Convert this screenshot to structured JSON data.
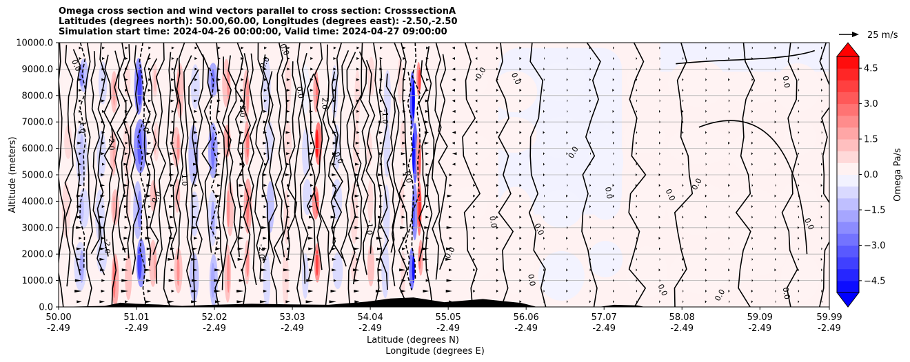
{
  "chart_data": {
    "type": "heatmap",
    "title_lines": [
      "Omega cross section and wind vectors parallel to cross section: CrosssectionA",
      "Latitudes (degrees north): 50.00,60.00, Longitudes (degrees east): -2.50,-2.50",
      "Simulation start time: 2024-04-26 00:00:00, Valid time: 2024-04-27 09:00:00"
    ],
    "ylabel": "Altitude (meters)",
    "xlabel_lines": [
      "Latitude (degrees N)",
      "Longitude (degrees E)"
    ],
    "ylim": [
      0,
      10000
    ],
    "xlim": [
      50.0,
      59.99
    ],
    "y_ticks": [
      {
        "value": 0,
        "label": "0.0"
      },
      {
        "value": 1000,
        "label": "1000.0"
      },
      {
        "value": 2000,
        "label": "2000.0"
      },
      {
        "value": 3000,
        "label": "3000.0"
      },
      {
        "value": 4000,
        "label": "4000.0"
      },
      {
        "value": 5000,
        "label": "5000.0"
      },
      {
        "value": 6000,
        "label": "6000.0"
      },
      {
        "value": 7000,
        "label": "7000.0"
      },
      {
        "value": 8000,
        "label": "8000.0"
      },
      {
        "value": 9000,
        "label": "9000.0"
      },
      {
        "value": 10000,
        "label": "10000.0"
      }
    ],
    "x_ticks": [
      {
        "value": 50.0,
        "lat": "50.00",
        "lon": "-2.49"
      },
      {
        "value": 51.01,
        "lat": "51.01",
        "lon": "-2.49"
      },
      {
        "value": 52.02,
        "lat": "52.02",
        "lon": "-2.49"
      },
      {
        "value": 53.03,
        "lat": "53.03",
        "lon": "-2.49"
      },
      {
        "value": 54.04,
        "lat": "54.04",
        "lon": "-2.49"
      },
      {
        "value": 55.05,
        "lat": "55.05",
        "lon": "-2.49"
      },
      {
        "value": 56.06,
        "lat": "56.06",
        "lon": "-2.49"
      },
      {
        "value": 57.07,
        "lat": "57.07",
        "lon": "-2.49"
      },
      {
        "value": 58.08,
        "lat": "58.08",
        "lon": "-2.49"
      },
      {
        "value": 59.09,
        "lat": "59.09",
        "lon": "-2.49"
      },
      {
        "value": 59.99,
        "lat": "59.99",
        "lon": "-2.49"
      }
    ],
    "grid": "horizontal",
    "colorbar": {
      "label": "Omega Pa/s",
      "range": [
        -5.0,
        5.0
      ],
      "levels": 20,
      "ticks": [
        {
          "value": 4.5,
          "label": "4.5"
        },
        {
          "value": 3.0,
          "label": "3.0"
        },
        {
          "value": 1.5,
          "label": "1.5"
        },
        {
          "value": 0.0,
          "label": "0.0"
        },
        {
          "value": -1.5,
          "label": "−1.5"
        },
        {
          "value": -3.0,
          "label": "−3.0"
        },
        {
          "value": -4.5,
          "label": "−4.5"
        }
      ],
      "cmap": "bwr",
      "extend": "both"
    },
    "contour_label_text": "0.0",
    "contour_labels_other": [
      "1.0",
      "-1.0",
      "2.0",
      "-2.0"
    ],
    "quiver_key": {
      "label": "25 m/s",
      "value": 25
    },
    "omega_bands": [
      {
        "x": 50.12,
        "v": 0.7,
        "w": 0.06
      },
      {
        "x": 50.3,
        "v": -1.2,
        "w": 0.08
      },
      {
        "x": 50.55,
        "v": -0.8,
        "w": 0.07
      },
      {
        "x": 50.72,
        "v": 1.4,
        "w": 0.05
      },
      {
        "x": 50.9,
        "v": 0.9,
        "w": 0.05
      },
      {
        "x": 51.05,
        "v": -2.0,
        "w": 0.08
      },
      {
        "x": 51.25,
        "v": 1.2,
        "w": 0.05
      },
      {
        "x": 51.55,
        "v": 1.6,
        "w": 0.05
      },
      {
        "x": 51.75,
        "v": -1.0,
        "w": 0.06
      },
      {
        "x": 52.0,
        "v": -1.5,
        "w": 0.07
      },
      {
        "x": 52.2,
        "v": 1.8,
        "w": 0.05
      },
      {
        "x": 52.45,
        "v": 2.0,
        "w": 0.05
      },
      {
        "x": 52.72,
        "v": -0.9,
        "w": 0.06
      },
      {
        "x": 52.95,
        "v": 0.8,
        "w": 0.05
      },
      {
        "x": 53.2,
        "v": -0.7,
        "w": 0.06
      },
      {
        "x": 53.35,
        "v": 2.4,
        "w": 0.05
      },
      {
        "x": 53.6,
        "v": -1.0,
        "w": 0.06
      },
      {
        "x": 53.85,
        "v": 0.9,
        "w": 0.05
      },
      {
        "x": 54.05,
        "v": 1.0,
        "w": 0.05
      },
      {
        "x": 54.25,
        "v": -0.8,
        "w": 0.05
      },
      {
        "x": 54.45,
        "v": 0.8,
        "w": 0.04
      },
      {
        "x": 54.6,
        "v": -3.0,
        "w": 0.04
      },
      {
        "x": 54.68,
        "v": 2.6,
        "w": 0.03
      },
      {
        "x": 55.3,
        "v": 0.35,
        "w": 0.35
      },
      {
        "x": 55.9,
        "v": 0.3,
        "w": 0.3
      },
      {
        "x": 56.5,
        "v": -0.35,
        "w": 0.3
      },
      {
        "x": 57.1,
        "v": -0.4,
        "w": 0.25
      },
      {
        "x": 57.6,
        "v": 0.3,
        "w": 0.3
      },
      {
        "x": 58.3,
        "v": 0.35,
        "w": 0.4
      },
      {
        "x": 59.0,
        "v": 0.3,
        "w": 0.4
      },
      {
        "x": 59.6,
        "v": 0.3,
        "w": 0.3
      }
    ],
    "terrain": [
      {
        "x": 50.0,
        "h": 0
      },
      {
        "x": 50.6,
        "h": 40
      },
      {
        "x": 50.8,
        "h": 160
      },
      {
        "x": 51.0,
        "h": 120
      },
      {
        "x": 51.3,
        "h": 90
      },
      {
        "x": 51.6,
        "h": 40
      },
      {
        "x": 52.0,
        "h": 80
      },
      {
        "x": 52.5,
        "h": 120
      },
      {
        "x": 53.0,
        "h": 100
      },
      {
        "x": 53.5,
        "h": 80
      },
      {
        "x": 54.0,
        "h": 200
      },
      {
        "x": 54.3,
        "h": 320
      },
      {
        "x": 54.6,
        "h": 360
      },
      {
        "x": 55.0,
        "h": 180
      },
      {
        "x": 55.5,
        "h": 300
      },
      {
        "x": 56.0,
        "h": 150
      },
      {
        "x": 56.2,
        "h": 0
      },
      {
        "x": 57.0,
        "h": 0
      },
      {
        "x": 57.2,
        "h": 80
      },
      {
        "x": 57.5,
        "h": 60
      },
      {
        "x": 57.6,
        "h": 0
      },
      {
        "x": 59.99,
        "h": 0
      }
    ]
  }
}
